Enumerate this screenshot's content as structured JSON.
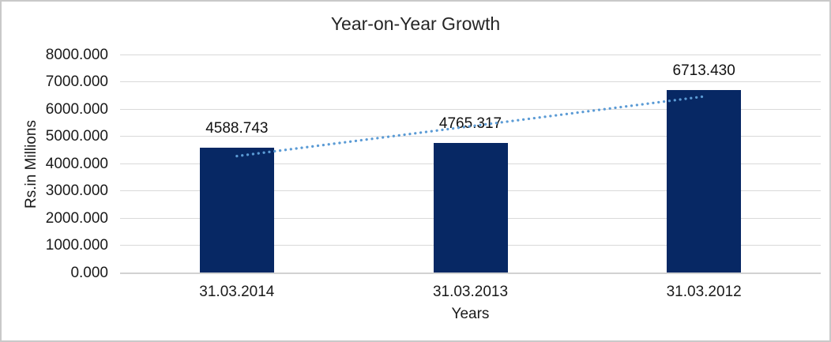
{
  "window": {
    "background_color": "#ffffff",
    "frame_border_color": "#c9c9c9"
  },
  "chart_data": {
    "type": "bar",
    "title": "Year-on-Year Growth",
    "xlabel": "Years",
    "ylabel": "Rs.in Millions",
    "categories": [
      "31.03.2014",
      "31.03.2013",
      "31.03.2012"
    ],
    "values": [
      4588.743,
      4765.317,
      6713.43
    ],
    "value_labels": [
      "4588.743",
      "4765.317",
      "6713.430"
    ],
    "ylim": [
      0,
      8000
    ],
    "ytick_step": 1000,
    "ytick_labels": [
      "0.000",
      "1000.000",
      "2000.000",
      "3000.000",
      "4000.000",
      "5000.000",
      "6000.000",
      "7000.000",
      "8000.000"
    ],
    "grid": true,
    "legend": "none",
    "bar_color": "#072864",
    "gridline_color": "#d9d9d9",
    "axis_line_color": "#d2d2d2",
    "trendline": {
      "type": "linear",
      "style": "dotted-round",
      "color": "#5b9bd5",
      "start_value": 4294,
      "end_value": 6486,
      "span": "first-category-center-to-last-category-center"
    }
  }
}
